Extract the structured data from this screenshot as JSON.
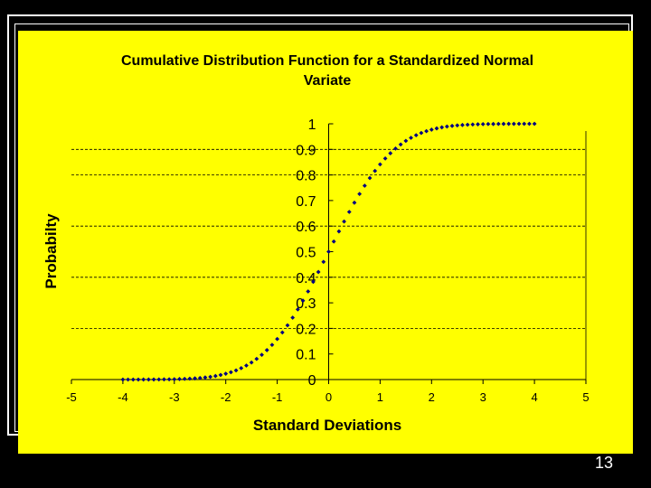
{
  "slide": {
    "page_number": "13",
    "background_color": "#000000",
    "chart_background_color": "#ffff00"
  },
  "chart_data": {
    "type": "scatter",
    "title_line1": "Cumulative Distribution Function for a Standardized Normal",
    "title_line2": "Variate",
    "xlabel": "Standard Deviations",
    "ylabel": "Probabilty",
    "xlim": [
      -5,
      5
    ],
    "ylim": [
      0,
      1
    ],
    "x_ticks": [
      -5,
      -4,
      -3,
      -2,
      -1,
      0,
      1,
      2,
      3,
      4,
      5
    ],
    "x_tick_labels": [
      "-5",
      "-4",
      "-3",
      "-2",
      "-1",
      "0",
      "1",
      "2",
      "3",
      "4",
      "5"
    ],
    "y_ticks": [
      0,
      0.1,
      0.2,
      0.3,
      0.4,
      0.5,
      0.6,
      0.7,
      0.8,
      0.9,
      1
    ],
    "y_tick_labels": [
      "0",
      "0.1",
      "0.2",
      "0.3",
      "0.4",
      "0.5",
      "0.6",
      "0.7",
      "0.8",
      "0.9",
      "1"
    ],
    "gridlines_at": [
      0.2,
      0.4,
      0.6,
      0.8,
      0.9
    ],
    "grid_style": "dashed",
    "marker_color": "#000080",
    "series": [
      {
        "x": [
          -4.0,
          -3.9,
          -3.8,
          -3.7,
          -3.6,
          -3.5,
          -3.4,
          -3.3,
          -3.2,
          -3.1,
          -3.0,
          -2.9,
          -2.8,
          -2.7,
          -2.6,
          -2.5,
          -2.4,
          -2.3,
          -2.2,
          -2.1,
          -2.0,
          -1.9,
          -1.8,
          -1.7,
          -1.6,
          -1.5,
          -1.4,
          -1.3,
          -1.2,
          -1.1,
          -1.0,
          -0.9,
          -0.8,
          -0.7,
          -0.6,
          -0.5,
          -0.4,
          -0.3,
          -0.2,
          -0.1,
          0.0,
          0.1,
          0.2,
          0.3,
          0.4,
          0.5,
          0.6,
          0.7,
          0.8,
          0.9,
          1.0,
          1.1,
          1.2,
          1.3,
          1.4,
          1.5,
          1.6,
          1.7,
          1.8,
          1.9,
          2.0,
          2.1,
          2.2,
          2.3,
          2.4,
          2.5,
          2.6,
          2.7,
          2.8,
          2.9,
          3.0,
          3.1,
          3.2,
          3.3,
          3.4,
          3.5,
          3.6,
          3.7,
          3.8,
          3.9,
          4.0
        ],
        "y": [
          0.0,
          0.0,
          0.0001,
          0.0001,
          0.0002,
          0.0002,
          0.0003,
          0.0005,
          0.0007,
          0.001,
          0.0013,
          0.0019,
          0.0026,
          0.0035,
          0.0047,
          0.0062,
          0.0082,
          0.0107,
          0.0139,
          0.0179,
          0.0228,
          0.0287,
          0.0359,
          0.0446,
          0.0548,
          0.0668,
          0.0808,
          0.0968,
          0.1151,
          0.1357,
          0.1587,
          0.1841,
          0.2119,
          0.242,
          0.2743,
          0.3085,
          0.3446,
          0.3821,
          0.4207,
          0.4602,
          0.5,
          0.5398,
          0.5793,
          0.6179,
          0.6554,
          0.6915,
          0.7257,
          0.758,
          0.7881,
          0.8159,
          0.8413,
          0.8643,
          0.8849,
          0.9032,
          0.9192,
          0.9332,
          0.9452,
          0.9554,
          0.9641,
          0.9713,
          0.9772,
          0.9821,
          0.9861,
          0.9893,
          0.9918,
          0.9938,
          0.9953,
          0.9965,
          0.9974,
          0.9981,
          0.9987,
          0.999,
          0.9993,
          0.9995,
          0.9997,
          0.9998,
          0.9998,
          0.9999,
          0.9999,
          1.0,
          1.0
        ]
      }
    ]
  }
}
